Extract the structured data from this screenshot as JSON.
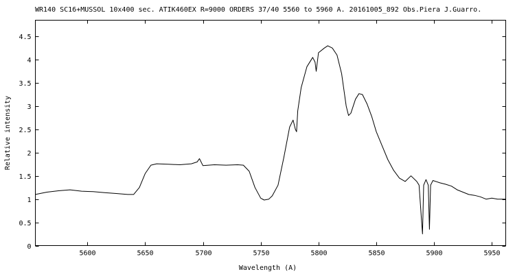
{
  "chart_data": {
    "type": "line",
    "title": "WR140  SC16+MUSSOL 10x400 sec. ATIK460EX  R=9000  ORDERS 37/40  5560 to 5960 A. 20161005_892 Obs.Piera  J.Guarro.",
    "xlabel": "Wavelength (A)",
    "ylabel": "Relative intensity",
    "xlim": [
      5555,
      5962
    ],
    "ylim": [
      0,
      4.85
    ],
    "grid": false,
    "x_ticks": [
      5600,
      5650,
      5700,
      5750,
      5800,
      5850,
      5900,
      5950
    ],
    "x_tick_labels": [
      "5600",
      "5650",
      "5700",
      "5750",
      "5800",
      "5850",
      "5900",
      "5950"
    ],
    "y_ticks": [
      0,
      0.5,
      1,
      1.5,
      2,
      2.5,
      3,
      3.5,
      4,
      4.5
    ],
    "y_tick_labels": [
      "0",
      "0.5",
      "1",
      "1.5",
      "2",
      "2.5",
      "3",
      "3.5",
      "4",
      "4.5"
    ],
    "series": [
      {
        "color": "#000000",
        "x": [
          5555,
          5565,
          5575,
          5585,
          5595,
          5605,
          5615,
          5625,
          5635,
          5640,
          5645,
          5650,
          5655,
          5660,
          5670,
          5680,
          5690,
          5695,
          5697,
          5700,
          5710,
          5720,
          5730,
          5735,
          5740,
          5745,
          5750,
          5753,
          5757,
          5760,
          5765,
          5770,
          5775,
          5778,
          5780,
          5781,
          5782,
          5785,
          5790,
          5795,
          5797,
          5798,
          5800,
          5805,
          5808,
          5812,
          5816,
          5820,
          5824,
          5826,
          5828,
          5832,
          5835,
          5838,
          5842,
          5846,
          5850,
          5855,
          5860,
          5865,
          5870,
          5875,
          5880,
          5885,
          5887,
          5889,
          5890,
          5891,
          5893,
          5895,
          5896,
          5897,
          5899,
          5905,
          5910,
          5915,
          5920,
          5925,
          5930,
          5935,
          5940,
          5945,
          5950,
          5955,
          5962
        ],
        "y": [
          1.1,
          1.15,
          1.18,
          1.2,
          1.17,
          1.16,
          1.14,
          1.12,
          1.1,
          1.1,
          1.25,
          1.55,
          1.73,
          1.76,
          1.75,
          1.74,
          1.76,
          1.8,
          1.87,
          1.72,
          1.74,
          1.73,
          1.74,
          1.73,
          1.6,
          1.25,
          1.02,
          0.98,
          1.0,
          1.07,
          1.3,
          1.9,
          2.55,
          2.7,
          2.5,
          2.45,
          2.9,
          3.4,
          3.85,
          4.05,
          3.95,
          3.75,
          4.15,
          4.25,
          4.3,
          4.25,
          4.1,
          3.7,
          3.0,
          2.8,
          2.85,
          3.15,
          3.27,
          3.25,
          3.05,
          2.78,
          2.45,
          2.15,
          1.85,
          1.62,
          1.45,
          1.38,
          1.5,
          1.38,
          1.3,
          0.6,
          0.25,
          1.3,
          1.42,
          1.3,
          0.35,
          1.3,
          1.4,
          1.35,
          1.32,
          1.28,
          1.2,
          1.15,
          1.1,
          1.08,
          1.05,
          1.0,
          1.02,
          1.0,
          1.0
        ]
      }
    ]
  }
}
